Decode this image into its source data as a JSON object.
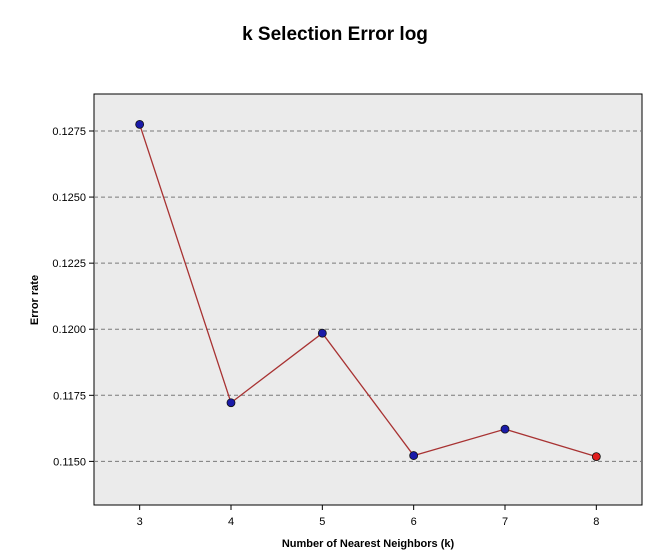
{
  "chart_data": {
    "type": "line",
    "title": "k Selection Error log",
    "xlabel": "Number of Nearest Neighbors (k)",
    "ylabel": "Error rate",
    "x": [
      3,
      4,
      5,
      6,
      7,
      8
    ],
    "y": [
      0.12775,
      0.11722,
      0.11985,
      0.11522,
      0.11622,
      0.11518
    ],
    "selected_k": 8,
    "xlim": [
      2.5,
      8.5
    ],
    "ylim": [
      0.11335,
      0.1289
    ],
    "yticks": [
      "0.1275",
      "0.1250",
      "0.1225",
      "0.1200",
      "0.1175",
      "0.1150"
    ],
    "xticks": [
      "3",
      "4",
      "5",
      "6",
      "7",
      "8"
    ],
    "grid": "horizontal dashed",
    "colors": {
      "line": "#a83232",
      "point": "#1a1aa8",
      "selected_point": "#e01e1e",
      "plot_background": "#ebebeb",
      "grid": "#7a7a7a"
    }
  }
}
